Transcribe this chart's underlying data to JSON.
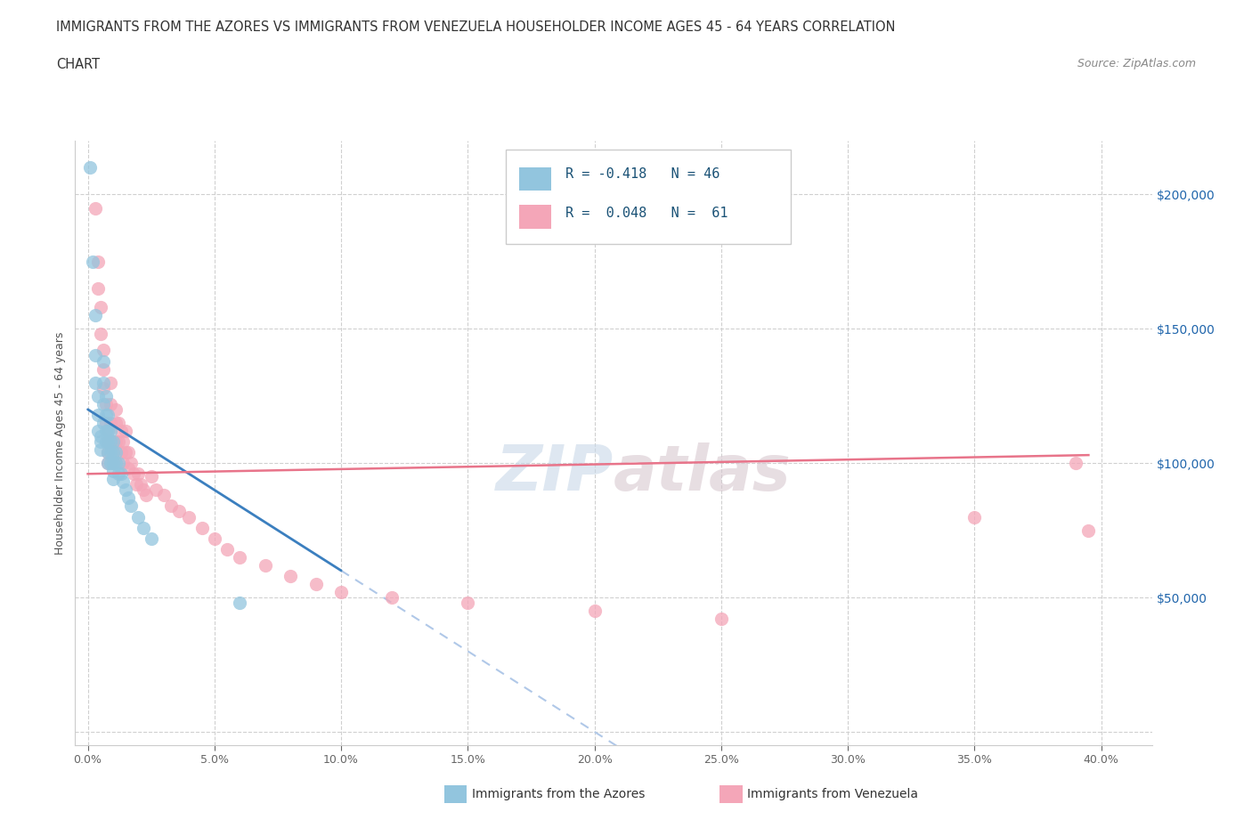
{
  "title_line1": "IMMIGRANTS FROM THE AZORES VS IMMIGRANTS FROM VENEZUELA HOUSEHOLDER INCOME AGES 45 - 64 YEARS CORRELATION",
  "title_line2": "CHART",
  "source_text": "Source: ZipAtlas.com",
  "ylabel_label": "Householder Income Ages 45 - 64 years",
  "azores_color": "#92c5de",
  "venezuela_color": "#f4a6b8",
  "azores_line_color": "#3b7fbf",
  "venezuela_line_color": "#e8748a",
  "dash_color": "#b0c8e8",
  "right_tick_color": "#2166ac",
  "azores_x": [
    0.001,
    0.002,
    0.003,
    0.003,
    0.003,
    0.004,
    0.004,
    0.004,
    0.005,
    0.005,
    0.005,
    0.006,
    0.006,
    0.006,
    0.006,
    0.007,
    0.007,
    0.007,
    0.007,
    0.008,
    0.008,
    0.008,
    0.008,
    0.008,
    0.009,
    0.009,
    0.009,
    0.009,
    0.01,
    0.01,
    0.01,
    0.01,
    0.01,
    0.011,
    0.011,
    0.012,
    0.012,
    0.013,
    0.014,
    0.015,
    0.016,
    0.017,
    0.02,
    0.022,
    0.025,
    0.06
  ],
  "azores_y": [
    210000,
    175000,
    155000,
    140000,
    130000,
    125000,
    118000,
    112000,
    110000,
    108000,
    105000,
    138000,
    130000,
    122000,
    115000,
    125000,
    118000,
    112000,
    108000,
    118000,
    112000,
    108000,
    104000,
    100000,
    112000,
    108000,
    104000,
    100000,
    108000,
    104000,
    100000,
    97000,
    94000,
    104000,
    100000,
    100000,
    96000,
    96000,
    93000,
    90000,
    87000,
    84000,
    80000,
    76000,
    72000,
    48000
  ],
  "venezuela_x": [
    0.003,
    0.004,
    0.004,
    0.005,
    0.005,
    0.006,
    0.006,
    0.006,
    0.007,
    0.007,
    0.008,
    0.008,
    0.008,
    0.008,
    0.009,
    0.009,
    0.009,
    0.01,
    0.01,
    0.01,
    0.011,
    0.011,
    0.011,
    0.012,
    0.012,
    0.013,
    0.013,
    0.014,
    0.014,
    0.015,
    0.015,
    0.016,
    0.016,
    0.017,
    0.018,
    0.019,
    0.02,
    0.021,
    0.022,
    0.023,
    0.025,
    0.027,
    0.03,
    0.033,
    0.036,
    0.04,
    0.045,
    0.05,
    0.055,
    0.06,
    0.07,
    0.08,
    0.09,
    0.1,
    0.12,
    0.15,
    0.2,
    0.25,
    0.35,
    0.39,
    0.395
  ],
  "venezuela_y": [
    195000,
    175000,
    165000,
    158000,
    148000,
    142000,
    135000,
    128000,
    122000,
    115000,
    112000,
    108000,
    104000,
    100000,
    130000,
    122000,
    115000,
    108000,
    104000,
    100000,
    120000,
    115000,
    108000,
    115000,
    108000,
    112000,
    104000,
    108000,
    100000,
    112000,
    104000,
    104000,
    98000,
    100000,
    96000,
    92000,
    96000,
    92000,
    90000,
    88000,
    95000,
    90000,
    88000,
    84000,
    82000,
    80000,
    76000,
    72000,
    68000,
    65000,
    62000,
    58000,
    55000,
    52000,
    50000,
    48000,
    45000,
    42000,
    80000,
    100000,
    75000
  ],
  "xlim": [
    -0.005,
    0.42
  ],
  "ylim": [
    -5000,
    220000
  ],
  "azores_line_x_end": 0.1,
  "dash_line_x_start": 0.1,
  "dash_line_x_end": 0.42,
  "venezuela_line_x_start": 0.0,
  "venezuela_line_x_end": 0.395,
  "watermark_text1": "ZIP",
  "watermark_text2": "atlas",
  "background_color": "#ffffff",
  "grid_color": "#d0d0d0",
  "xticks": [
    0.0,
    0.05,
    0.1,
    0.15,
    0.2,
    0.25,
    0.3,
    0.35,
    0.4
  ],
  "yticks": [
    0,
    50000,
    100000,
    150000,
    200000
  ],
  "legend_text": [
    [
      "R = -0.418",
      "N = 46"
    ],
    [
      "R =  0.048",
      "N =  61"
    ]
  ]
}
